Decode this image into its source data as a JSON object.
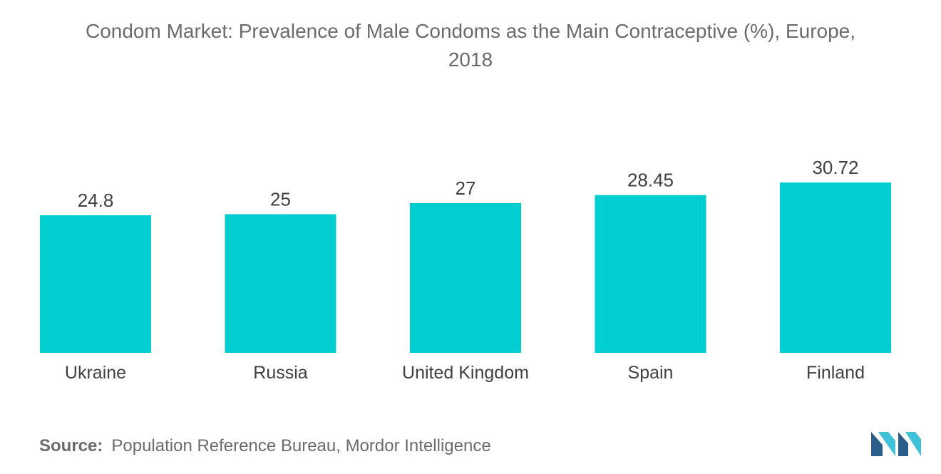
{
  "title": {
    "line1": "Condom Market: Prevalence of Male Condoms as the Main Contraceptive (%), Europe,",
    "line2": "2018"
  },
  "chart_data": {
    "type": "bar",
    "title": "Condom Market: Prevalence of Male Condoms as the Main Contraceptive (%), Europe, 2018",
    "categories": [
      "Ukraine",
      "Russia",
      "United Kingdom",
      "Spain",
      "Finland"
    ],
    "values": [
      24.8,
      25,
      27,
      28.45,
      30.72
    ],
    "value_labels": [
      "24.8",
      "25",
      "27",
      "28.45",
      "30.72"
    ],
    "xlabel": "",
    "ylabel": "",
    "ylim": [
      0,
      30.72
    ],
    "grid": false,
    "legend": "none",
    "bar_color": "#00CED1"
  },
  "source": {
    "label": "Source:",
    "text": "Population Reference Bureau, Mordor Intelligence"
  },
  "logo": {
    "icon": "mordor-intelligence-logo-icon",
    "color_dark": "#2B5C8A",
    "color_light": "#3FC1D9"
  }
}
